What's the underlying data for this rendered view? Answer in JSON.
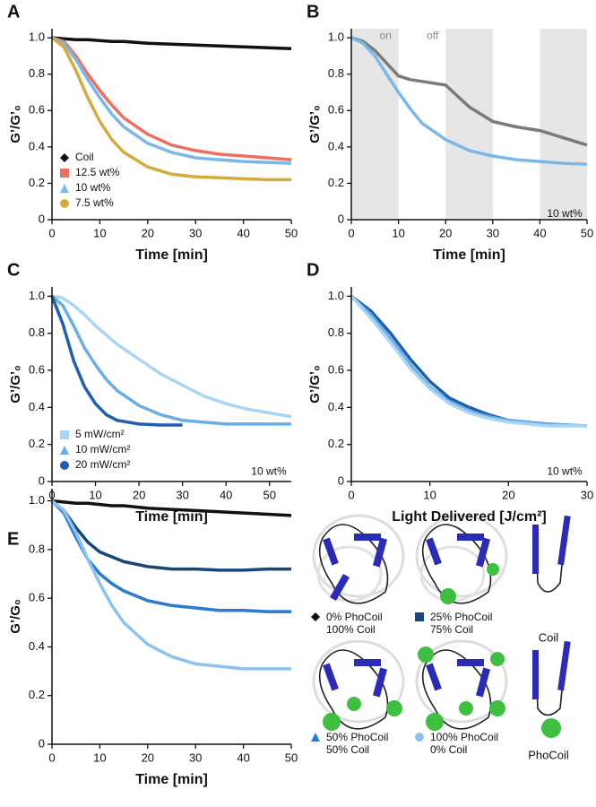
{
  "chart_data": [
    {
      "type": "line",
      "panel": "A",
      "xlabel": "Time [min]",
      "ylabel": "G’/G’₀",
      "x": [
        0,
        2.5,
        5,
        7.5,
        10,
        12.5,
        15,
        20,
        25,
        30,
        35,
        40,
        45,
        50
      ],
      "xlim": [
        0,
        50
      ],
      "xticks": [
        0,
        10,
        20,
        30,
        40,
        50
      ],
      "ylim": [
        0,
        1.05
      ],
      "yticks": [
        0,
        0.2,
        0.4,
        0.6,
        0.8,
        {
          "value": 1,
          "label": "1.0"
        }
      ],
      "legend": "lower left",
      "series": [
        {
          "name": "Coil",
          "color": "#111111",
          "marker": "diamond",
          "values": [
            1,
            0.995,
            0.99,
            0.99,
            0.985,
            0.98,
            0.98,
            0.97,
            0.965,
            0.96,
            0.955,
            0.95,
            0.945,
            0.94
          ]
        },
        {
          "name": "12.5 wt%",
          "color": "#ef6f5e",
          "marker": "square",
          "values": [
            1,
            0.98,
            0.9,
            0.8,
            0.71,
            0.63,
            0.56,
            0.47,
            0.41,
            0.38,
            0.36,
            0.35,
            0.34,
            0.33
          ]
        },
        {
          "name": "10 wt%",
          "color": "#7ab8ea",
          "marker": "triangle",
          "values": [
            1,
            0.97,
            0.88,
            0.77,
            0.67,
            0.58,
            0.51,
            0.42,
            0.37,
            0.34,
            0.33,
            0.32,
            0.315,
            0.31
          ]
        },
        {
          "name": "7.5 wt%",
          "color": "#d6ab3c",
          "marker": "circle",
          "values": [
            1,
            0.95,
            0.82,
            0.67,
            0.54,
            0.44,
            0.37,
            0.29,
            0.25,
            0.235,
            0.23,
            0.225,
            0.22,
            0.22
          ]
        }
      ]
    },
    {
      "type": "line",
      "panel": "B",
      "xlabel": "Time [min]",
      "ylabel": "G’/G’₀",
      "x": [
        0,
        2.5,
        5,
        7.5,
        10,
        12.5,
        15,
        20,
        25,
        30,
        35,
        40,
        45,
        50
      ],
      "xlim": [
        0,
        50
      ],
      "xticks": [
        0,
        10,
        20,
        30,
        40,
        50
      ],
      "ylim": [
        0,
        1.05
      ],
      "yticks": [
        0,
        0.2,
        0.4,
        0.6,
        0.8,
        {
          "value": 1,
          "label": "1.0"
        }
      ],
      "shaded": [
        [
          0,
          10
        ],
        [
          20,
          30
        ],
        [
          40,
          50
        ]
      ],
      "annotations": [
        "on",
        "off",
        "10 wt%"
      ],
      "series": [
        {
          "color": "#7a7a7a",
          "values": [
            1,
            0.98,
            0.93,
            0.86,
            0.79,
            0.77,
            0.76,
            0.74,
            0.62,
            0.54,
            0.51,
            0.49,
            0.45,
            0.41
          ]
        },
        {
          "color": "#7ab8ea",
          "values": [
            1,
            0.97,
            0.9,
            0.8,
            0.7,
            0.61,
            0.53,
            0.44,
            0.38,
            0.35,
            0.33,
            0.32,
            0.31,
            0.305
          ]
        }
      ]
    },
    {
      "type": "line",
      "panel": "C",
      "xlabel": "Time [min]",
      "ylabel": "G’/G’₀",
      "x": [
        0,
        2.5,
        5,
        7.5,
        10,
        12.5,
        15,
        20,
        25,
        30,
        35,
        40,
        45,
        50,
        55
      ],
      "xlim": [
        0,
        55
      ],
      "xticks": [
        0,
        10,
        20,
        30,
        40,
        50
      ],
      "ylim": [
        0,
        1.05
      ],
      "yticks": [
        0,
        0.2,
        0.4,
        0.6,
        0.8,
        {
          "value": 1,
          "label": "1.0"
        }
      ],
      "legend": "lower left",
      "annotations": [
        "10 wt%"
      ],
      "series": [
        {
          "name": "5 mW/cm²",
          "color": "#a9d6f5",
          "marker": "square",
          "values": [
            1,
            0.99,
            0.95,
            0.9,
            0.84,
            0.79,
            0.74,
            0.66,
            0.58,
            0.52,
            0.46,
            0.42,
            0.39,
            0.37,
            0.35
          ]
        },
        {
          "name": "10 mW/cm²",
          "color": "#6aaee3",
          "marker": "triangle",
          "values": [
            1,
            0.95,
            0.84,
            0.72,
            0.63,
            0.55,
            0.49,
            0.41,
            0.36,
            0.33,
            0.32,
            0.31,
            0.31,
            0.31,
            0.31
          ]
        },
        {
          "name": "20 mW/cm²",
          "color": "#1f5fb0",
          "marker": "circle",
          "values": [
            1,
            0.85,
            0.65,
            0.51,
            0.42,
            0.36,
            0.33,
            0.31,
            0.305,
            0.305,
            null,
            null,
            null,
            null,
            null
          ]
        }
      ]
    },
    {
      "type": "line",
      "panel": "D",
      "xlabel": "Light Delivered [J/cm²]",
      "ylabel": "G’/G’₀",
      "x": [
        0,
        2.5,
        5,
        7.5,
        10,
        12.5,
        15,
        17.5,
        20,
        22.5,
        25,
        27.5,
        30
      ],
      "xlim": [
        0,
        30
      ],
      "xticks": [
        0,
        10,
        20,
        30
      ],
      "ylim": [
        0,
        1.05
      ],
      "yticks": [
        0,
        0.2,
        0.4,
        0.6,
        0.8,
        {
          "value": 1,
          "label": "1.0"
        }
      ],
      "annotations": [
        "10 wt%"
      ],
      "series": [
        {
          "color": "#1f5fb0",
          "values": [
            1,
            0.92,
            0.8,
            0.66,
            0.54,
            0.45,
            0.4,
            0.36,
            0.33,
            0.32,
            0.31,
            0.305,
            0.3
          ]
        },
        {
          "color": "#6aaee3",
          "values": [
            1,
            0.9,
            0.77,
            0.63,
            0.51,
            0.43,
            0.38,
            0.35,
            0.33,
            0.32,
            0.31,
            0.305,
            0.3
          ]
        },
        {
          "color": "#a9d6f5",
          "values": [
            1,
            0.88,
            0.75,
            0.61,
            0.5,
            0.42,
            0.37,
            0.34,
            0.32,
            0.31,
            0.3,
            0.3,
            0.3
          ]
        }
      ]
    },
    {
      "type": "line",
      "panel": "E",
      "xlabel": "Time [min]",
      "ylabel": "G’/G₀",
      "x": [
        0,
        2.5,
        5,
        7.5,
        10,
        12.5,
        15,
        20,
        25,
        30,
        35,
        40,
        45,
        50
      ],
      "xlim": [
        0,
        50
      ],
      "xticks": [
        0,
        10,
        20,
        30,
        40,
        50
      ],
      "ylim": [
        0,
        1.05
      ],
      "yticks": [
        0,
        0.2,
        0.4,
        0.6,
        0.8,
        {
          "value": 1,
          "label": "1.0"
        }
      ],
      "legend": "outside right",
      "series": [
        {
          "name": "0% PhoCoil\n100% Coil",
          "color": "#111111",
          "marker": "diamond",
          "values": [
            1,
            0.995,
            0.99,
            0.99,
            0.985,
            0.98,
            0.98,
            0.97,
            0.965,
            0.96,
            0.955,
            0.95,
            0.945,
            0.94
          ]
        },
        {
          "name": "25% PhoCoil\n75% Coil",
          "color": "#17467d",
          "marker": "square",
          "values": [
            1,
            0.96,
            0.89,
            0.83,
            0.79,
            0.77,
            0.75,
            0.73,
            0.72,
            0.72,
            0.715,
            0.715,
            0.72,
            0.72
          ]
        },
        {
          "name": "50% PhoCoil\n50% Coil",
          "color": "#2a7bd0",
          "marker": "triangle",
          "values": [
            1,
            0.95,
            0.85,
            0.76,
            0.7,
            0.66,
            0.63,
            0.59,
            0.57,
            0.56,
            0.55,
            0.55,
            0.545,
            0.545
          ]
        },
        {
          "name": "100% PhoCoil\n0% Coil",
          "color": "#8ac3ef",
          "marker": "circle",
          "values": [
            1,
            0.96,
            0.87,
            0.76,
            0.66,
            0.57,
            0.5,
            0.41,
            0.36,
            0.33,
            0.32,
            0.31,
            0.31,
            0.31
          ]
        }
      ]
    }
  ],
  "illustrations": {
    "coil": "Coil",
    "phocoil": "PhoCoil"
  }
}
